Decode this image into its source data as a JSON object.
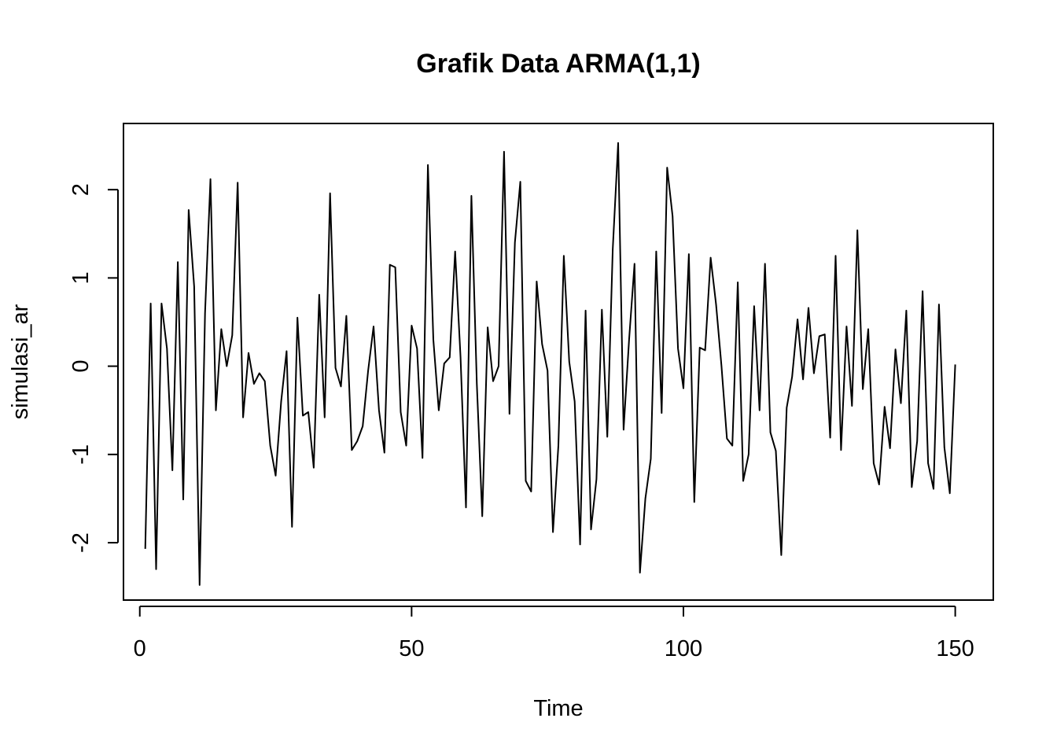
{
  "colors": {
    "line": "#000000",
    "frame": "#000000",
    "background": "#ffffff"
  },
  "chart_data": {
    "type": "line",
    "title": "Grafik Data ARMA(1,1)",
    "xlabel": "Time",
    "ylabel": "simulasi_ar",
    "xlim": [
      -3,
      157
    ],
    "ylim": [
      -2.65,
      2.75
    ],
    "xticks": [
      0,
      50,
      100,
      150
    ],
    "xtick_labels": [
      "0",
      "50",
      "100",
      "150"
    ],
    "yticks": [
      -2,
      -1,
      0,
      1,
      2
    ],
    "ytick_labels": [
      "-2",
      "-1",
      "0",
      "1",
      "2"
    ],
    "grid": false,
    "legend": "none",
    "series": [
      {
        "x": [
          1,
          2,
          3,
          4,
          5,
          6,
          7,
          8,
          9,
          10,
          11,
          12,
          13,
          14,
          15,
          16,
          17,
          18,
          19,
          20,
          21,
          22,
          23,
          24,
          25,
          26,
          27,
          28,
          29,
          30,
          31,
          32,
          33,
          34,
          35,
          36,
          37,
          38,
          39,
          40,
          41,
          42,
          43,
          44,
          45,
          46,
          47,
          48,
          49,
          50,
          51,
          52,
          53,
          54,
          55,
          56,
          57,
          58,
          59,
          60,
          61,
          62,
          63,
          64,
          65,
          66,
          67,
          68,
          69,
          70,
          71,
          72,
          73,
          74,
          75,
          76,
          77,
          78,
          79,
          80,
          81,
          82,
          83,
          84,
          85,
          86,
          87,
          88,
          89,
          90,
          91,
          92,
          93,
          94,
          95,
          96,
          97,
          98,
          99,
          100,
          101,
          102,
          103,
          104,
          105,
          106,
          107,
          108,
          109,
          110,
          111,
          112,
          113,
          114,
          115,
          116,
          117,
          118,
          119,
          120,
          121,
          122,
          123,
          124,
          125,
          126,
          127,
          128,
          129,
          130,
          131,
          132,
          133,
          134,
          135,
          136,
          137,
          138,
          139,
          140,
          141,
          142,
          143,
          144,
          145,
          146,
          147,
          148,
          149,
          150
        ],
        "values": [
          -2.07,
          0.71,
          -2.3,
          0.71,
          0.2,
          -1.18,
          1.18,
          -1.51,
          1.77,
          0.9,
          -2.48,
          0.6,
          2.12,
          -0.5,
          0.42,
          0.0,
          0.35,
          2.08,
          -0.58,
          0.15,
          -0.2,
          -0.08,
          -0.17,
          -0.9,
          -1.24,
          -0.4,
          0.17,
          -1.82,
          0.55,
          -0.56,
          -0.52,
          -1.15,
          0.81,
          -0.58,
          1.96,
          -0.02,
          -0.23,
          0.57,
          -0.95,
          -0.85,
          -0.68,
          -0.05,
          0.45,
          -0.5,
          -0.98,
          1.15,
          1.12,
          -0.52,
          -0.9,
          0.46,
          0.2,
          -1.04,
          2.28,
          0.3,
          -0.5,
          0.03,
          0.1,
          1.3,
          0.1,
          -1.6,
          1.93,
          -0.2,
          -1.7,
          0.44,
          -0.17,
          0.0,
          2.43,
          -0.54,
          1.4,
          2.09,
          -1.3,
          -1.42,
          0.96,
          0.25,
          -0.05,
          -1.88,
          -0.9,
          1.25,
          0.05,
          -0.4,
          -2.02,
          0.63,
          -1.85,
          -1.28,
          0.64,
          -0.8,
          1.32,
          2.53,
          -0.72,
          0.3,
          1.16,
          -2.34,
          -1.5,
          -1.05,
          1.3,
          -0.53,
          2.25,
          1.7,
          0.2,
          -0.25,
          1.27,
          -1.54,
          0.21,
          0.18,
          1.23,
          0.7,
          0.0,
          -0.82,
          -0.9,
          0.95,
          -1.3,
          -1.0,
          0.68,
          -0.5,
          1.16,
          -0.75,
          -0.96,
          -2.14,
          -0.47,
          -0.12,
          0.53,
          -0.15,
          0.66,
          -0.08,
          0.34,
          0.36,
          -0.81,
          1.25,
          -0.95,
          0.45,
          -0.45,
          1.54,
          -0.26,
          0.42,
          -1.1,
          -1.34,
          -0.46,
          -0.93,
          0.19,
          -0.42,
          0.63,
          -1.37,
          -0.85,
          0.85,
          -1.1,
          -1.39,
          0.7,
          -0.92,
          -1.44,
          0.02
        ]
      }
    ]
  }
}
